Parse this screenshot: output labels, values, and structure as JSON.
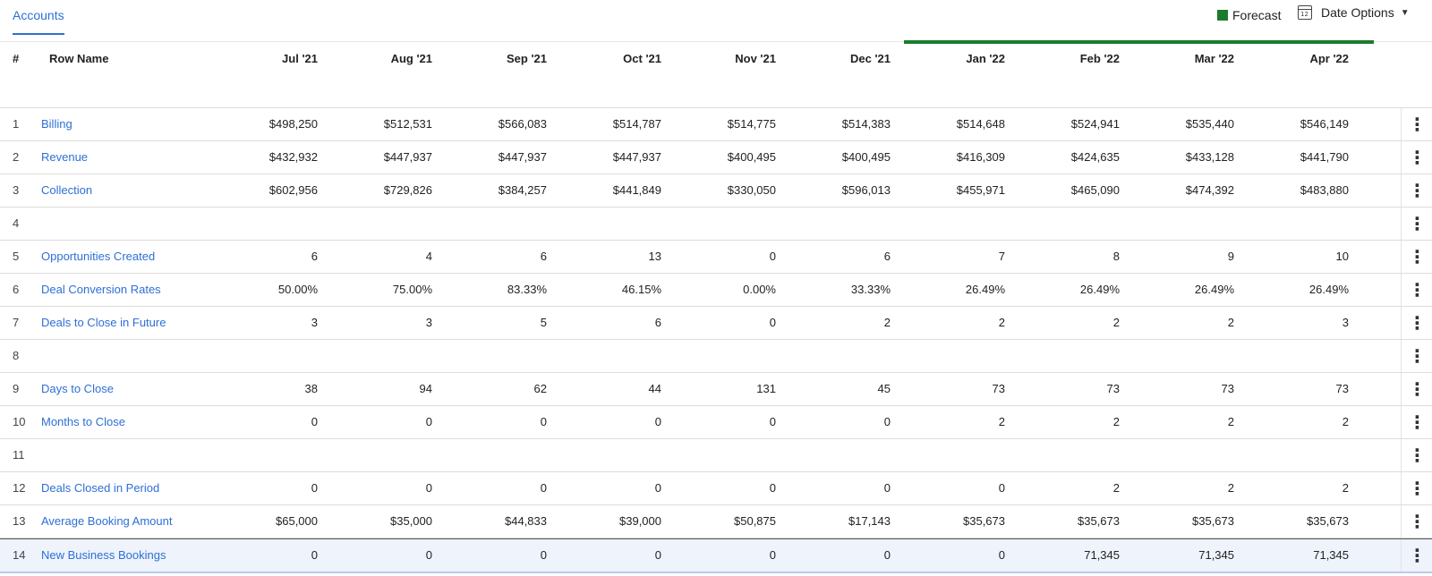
{
  "header": {
    "tab_label": "Accounts",
    "forecast_label": "Forecast",
    "date_options_label": "Date Options",
    "calendar_icon_text": "12",
    "forecast_color": "#1b7a2e",
    "accent_color": "#2e6fd6"
  },
  "table": {
    "columns": {
      "index": "#",
      "name": "Row Name",
      "months": [
        "Jul '21",
        "Aug '21",
        "Sep '21",
        "Oct '21",
        "Nov '21",
        "Dec '21",
        "Jan '22",
        "Feb '22",
        "Mar '22",
        "Apr '22"
      ]
    },
    "rows": [
      {
        "idx": "1",
        "name": "Billing",
        "values": [
          "$498,250",
          "$512,531",
          "$566,083",
          "$514,787",
          "$514,775",
          "$514,383",
          "$514,648",
          "$524,941",
          "$535,440",
          "$546,149"
        ]
      },
      {
        "idx": "2",
        "name": "Revenue",
        "values": [
          "$432,932",
          "$447,937",
          "$447,937",
          "$447,937",
          "$400,495",
          "$400,495",
          "$416,309",
          "$424,635",
          "$433,128",
          "$441,790"
        ]
      },
      {
        "idx": "3",
        "name": "Collection",
        "values": [
          "$602,956",
          "$729,826",
          "$384,257",
          "$441,849",
          "$330,050",
          "$596,013",
          "$455,971",
          "$465,090",
          "$474,392",
          "$483,880"
        ]
      },
      {
        "idx": "4",
        "name": "",
        "values": [
          "",
          "",
          "",
          "",
          "",
          "",
          "",
          "",
          "",
          ""
        ]
      },
      {
        "idx": "5",
        "name": "Opportunities Created",
        "values": [
          "6",
          "4",
          "6",
          "13",
          "0",
          "6",
          "7",
          "8",
          "9",
          "10"
        ]
      },
      {
        "idx": "6",
        "name": "Deal Conversion Rates",
        "values": [
          "50.00%",
          "75.00%",
          "83.33%",
          "46.15%",
          "0.00%",
          "33.33%",
          "26.49%",
          "26.49%",
          "26.49%",
          "26.49%"
        ]
      },
      {
        "idx": "7",
        "name": "Deals to Close in Future",
        "values": [
          "3",
          "3",
          "5",
          "6",
          "0",
          "2",
          "2",
          "2",
          "2",
          "3"
        ]
      },
      {
        "idx": "8",
        "name": "",
        "values": [
          "",
          "",
          "",
          "",
          "",
          "",
          "",
          "",
          "",
          ""
        ]
      },
      {
        "idx": "9",
        "name": "Days to Close",
        "values": [
          "38",
          "94",
          "62",
          "44",
          "131",
          "45",
          "73",
          "73",
          "73",
          "73"
        ]
      },
      {
        "idx": "10",
        "name": "Months to Close",
        "values": [
          "0",
          "0",
          "0",
          "0",
          "0",
          "0",
          "2",
          "2",
          "2",
          "2"
        ]
      },
      {
        "idx": "11",
        "name": "",
        "values": [
          "",
          "",
          "",
          "",
          "",
          "",
          "",
          "",
          "",
          ""
        ]
      },
      {
        "idx": "12",
        "name": "Deals Closed in Period",
        "values": [
          "0",
          "0",
          "0",
          "0",
          "0",
          "0",
          "0",
          "2",
          "2",
          "2"
        ]
      },
      {
        "idx": "13",
        "name": "Average Booking Amount",
        "values": [
          "$65,000",
          "$35,000",
          "$44,833",
          "$39,000",
          "$50,875",
          "$17,143",
          "$35,673",
          "$35,673",
          "$35,673",
          "$35,673"
        ]
      },
      {
        "idx": "14",
        "name": "New Business Bookings",
        "values": [
          "0",
          "0",
          "0",
          "0",
          "0",
          "0",
          "0",
          "71,345",
          "71,345",
          "71,345"
        ]
      }
    ]
  }
}
